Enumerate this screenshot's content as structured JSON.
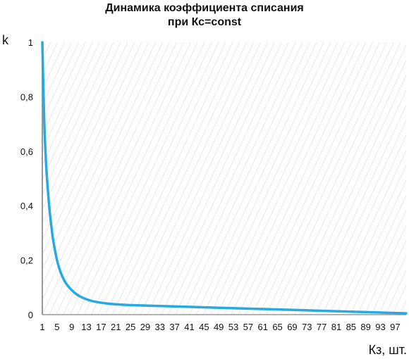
{
  "chart_data": {
    "type": "line",
    "title_line1": "Динамика коэффициента списания",
    "title_line2": "при Кс=const",
    "ylabel": "k",
    "xlabel": "Кз, шт.",
    "ylim": [
      0,
      1
    ],
    "xlim": [
      1,
      100
    ],
    "y_ticks": [
      "0",
      "0,2",
      "0,4",
      "0,6",
      "0,8",
      "1"
    ],
    "y_tick_values": [
      0,
      0.2,
      0.4,
      0.6,
      0.8,
      1
    ],
    "x_ticks": [
      "1",
      "5",
      "9",
      "13",
      "17",
      "21",
      "25",
      "29",
      "33",
      "37",
      "41",
      "45",
      "49",
      "53",
      "57",
      "61",
      "65",
      "69",
      "73",
      "77",
      "81",
      "85",
      "89",
      "93",
      "97"
    ],
    "x_tick_values": [
      1,
      5,
      9,
      13,
      17,
      21,
      25,
      29,
      33,
      37,
      41,
      45,
      49,
      53,
      57,
      61,
      65,
      69,
      73,
      77,
      81,
      85,
      89,
      93,
      97
    ],
    "series": [
      {
        "color": "#27a9e1",
        "x": [
          1,
          1.5,
          2,
          2.5,
          3,
          3.5,
          4,
          5,
          6,
          7,
          8,
          9,
          10,
          11,
          12,
          14,
          16,
          18,
          20,
          22,
          25,
          30,
          40,
          50,
          60,
          70,
          80,
          90,
          100
        ],
        "y": [
          1.0,
          0.72,
          0.56,
          0.46,
          0.38,
          0.32,
          0.27,
          0.2,
          0.155,
          0.125,
          0.105,
          0.09,
          0.078,
          0.069,
          0.062,
          0.052,
          0.046,
          0.042,
          0.039,
          0.037,
          0.035,
          0.033,
          0.029,
          0.025,
          0.021,
          0.017,
          0.013,
          0.009,
          0.005
        ]
      }
    ],
    "background": "hatched",
    "hatch_color": "#d9d9d9",
    "axis_color": "#999999",
    "grid": false,
    "legend": "none"
  }
}
